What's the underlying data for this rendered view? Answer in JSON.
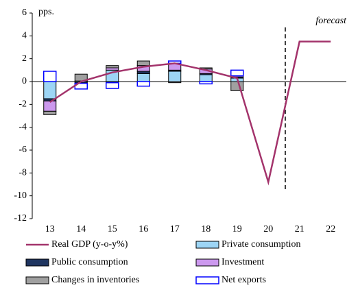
{
  "chart_data": {
    "type": "bar",
    "unit_label": "pps.",
    "annotation": "forecast",
    "categories": [
      "13",
      "14",
      "15",
      "16",
      "17",
      "18",
      "19",
      "20",
      "21",
      "22"
    ],
    "series": [
      {
        "name": "Real GDP (y-o-y%)",
        "type": "line",
        "color": "#a3336b",
        "values": [
          -1.8,
          0.0,
          0.8,
          1.3,
          1.6,
          1.0,
          0.3,
          -8.8,
          3.5,
          3.5
        ]
      },
      {
        "name": "Private consumption",
        "color": "#9dd5f5",
        "values": [
          -1.5,
          -0.1,
          1.0,
          0.7,
          0.9,
          0.6,
          0.3,
          null,
          null,
          null
        ]
      },
      {
        "name": "Public consumption",
        "color": "#1f3560",
        "values": [
          -0.2,
          -0.05,
          -0.1,
          0.2,
          0.1,
          0.1,
          0.1,
          null,
          null,
          null
        ]
      },
      {
        "name": "Investment",
        "color": "#cc99ee",
        "values": [
          -0.9,
          0.05,
          0.2,
          0.5,
          0.6,
          0.4,
          0.1,
          null,
          null,
          null
        ]
      },
      {
        "name": "Changes in inventories",
        "color": "#a0a0a0",
        "values": [
          -0.3,
          0.6,
          0.2,
          0.4,
          -0.1,
          0.1,
          -0.8,
          null,
          null,
          null
        ]
      },
      {
        "name": "Net exports",
        "color": "#0000ff",
        "outline": true,
        "values": [
          0.9,
          -0.5,
          -0.5,
          -0.4,
          0.2,
          -0.2,
          0.5,
          null,
          null,
          null
        ]
      }
    ],
    "ylim": [
      -12,
      6
    ],
    "yticks": [
      -12,
      -10,
      -8,
      -6,
      -4,
      -2,
      0,
      2,
      4,
      6
    ]
  }
}
